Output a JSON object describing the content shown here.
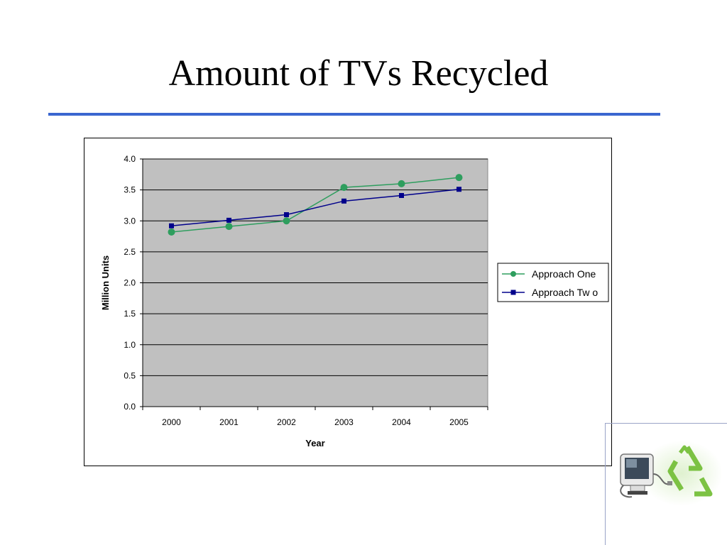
{
  "slide": {
    "title": "Amount of TVs Recycled"
  },
  "colors": {
    "accent_rule": "#3a66d0",
    "plot_bg": "#c0c0c0",
    "series1": "#2e9e5e",
    "series2": "#00008b"
  },
  "icons": [
    "computer-monitor-icon",
    "recycle-icon"
  ],
  "chart_data": {
    "type": "line",
    "title": "",
    "xlabel": "Year",
    "ylabel": "Million Units",
    "categories": [
      "2000",
      "2001",
      "2002",
      "2003",
      "2004",
      "2005"
    ],
    "ylim": [
      0,
      4.0
    ],
    "yticks": [
      "0.0",
      "0.5",
      "1.0",
      "1.5",
      "2.0",
      "2.5",
      "3.0",
      "3.5",
      "4.0"
    ],
    "grid": true,
    "legend_position": "right",
    "series": [
      {
        "name": "Approach One",
        "marker": "circle",
        "color": "#2e9e5e",
        "values": [
          2.82,
          2.91,
          3.0,
          3.54,
          3.6,
          3.7
        ]
      },
      {
        "name": "Approach Tw o",
        "marker": "square",
        "color": "#00008b",
        "values": [
          2.92,
          3.01,
          3.1,
          3.32,
          3.41,
          3.51
        ]
      }
    ]
  }
}
